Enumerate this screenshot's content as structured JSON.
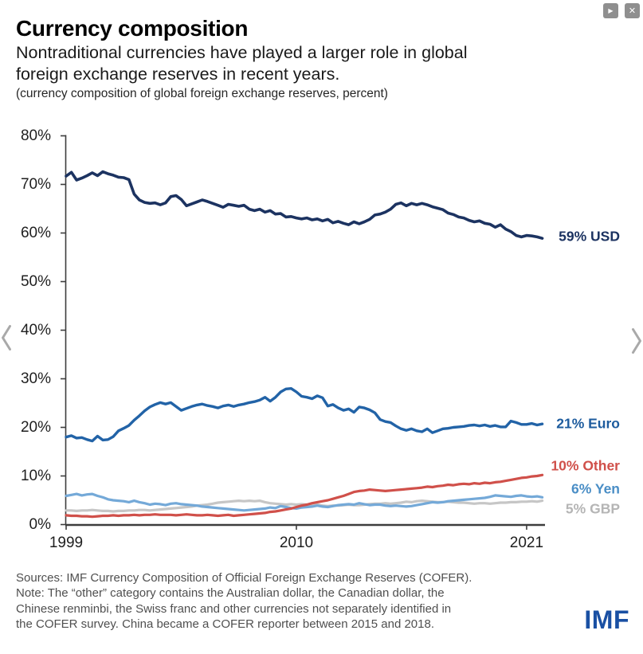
{
  "window": {
    "play_button": "▶",
    "close_button": "✕"
  },
  "header": {
    "title": "Currency composition",
    "subtitle_line1": "Nontraditional currencies have played a larger role in global",
    "subtitle_line2": "foreign exchange reserves in recent years.",
    "caption": "(currency composition of global foreign exchange reserves, percent)"
  },
  "footer": {
    "source_line1": "Sources: IMF Currency Composition of Official Foreign Exchange Reserves (COFER).",
    "source_line2": "Note: The “other” category contains the Australian dollar, the Canadian dollar, the",
    "source_line3": "Chinese renminbi, the Swiss franc and other currencies not separately identified in",
    "source_line4": "the COFER survey. China became a COFER reporter between 2015 and 2018.",
    "logo": "IMF"
  },
  "chart_data": {
    "type": "line",
    "title": "Currency composition",
    "subtitle": "currency composition of global foreign exchange reserves, percent",
    "x_unit": "quarter",
    "xlim": [
      1999,
      2022
    ],
    "ylim": [
      0,
      80
    ],
    "grid": false,
    "legend_position": "right-end-labels",
    "axis_color": "#3d3d3d",
    "x_ticks": [
      {
        "label": "1999",
        "year": 1999
      },
      {
        "label": "2010",
        "year": 2010
      },
      {
        "label": "2021",
        "year": 2021
      }
    ],
    "y_ticks": [
      {
        "label": "0%",
        "value": 0
      },
      {
        "label": "10%",
        "value": 10
      },
      {
        "label": "20%",
        "value": 20
      },
      {
        "label": "30%",
        "value": 30
      },
      {
        "label": "40%",
        "value": 40
      },
      {
        "label": "50%",
        "value": 50
      },
      {
        "label": "60%",
        "value": 60
      },
      {
        "label": "70%",
        "value": 70
      },
      {
        "label": "80%",
        "value": 80
      }
    ],
    "series": [
      {
        "name": "USD",
        "end_label": "59% USD",
        "color": "#1c3361",
        "label_color": "#1c3361",
        "stroke_width": 3.6,
        "label_offset": -2,
        "values": [
          71.7,
          72.5,
          70.9,
          71.3,
          71.8,
          72.4,
          71.8,
          72.6,
          72.2,
          71.9,
          71.5,
          71.4,
          71.0,
          68.0,
          66.8,
          66.3,
          66.1,
          66.2,
          65.8,
          66.2,
          67.5,
          67.7,
          66.9,
          65.6,
          66.0,
          66.4,
          66.8,
          66.5,
          66.1,
          65.7,
          65.3,
          65.9,
          65.7,
          65.5,
          65.7,
          64.9,
          64.6,
          64.9,
          64.3,
          64.6,
          63.9,
          64.0,
          63.3,
          63.4,
          63.1,
          62.9,
          63.1,
          62.7,
          62.9,
          62.5,
          62.8,
          62.1,
          62.4,
          62.0,
          61.7,
          62.3,
          61.9,
          62.3,
          62.8,
          63.7,
          63.9,
          64.3,
          64.9,
          65.9,
          66.2,
          65.6,
          66.1,
          65.8,
          66.1,
          65.8,
          65.4,
          65.1,
          64.8,
          64.1,
          63.8,
          63.3,
          63.1,
          62.6,
          62.3,
          62.5,
          62.0,
          61.8,
          61.2,
          61.7,
          60.8,
          60.3,
          59.5,
          59.2,
          59.5,
          59.4,
          59.2,
          58.9
        ]
      },
      {
        "name": "Euro",
        "end_label": "21% Euro",
        "color": "#2263a7",
        "label_color": "#1e5c9e",
        "stroke_width": 3.4,
        "label_offset": 0,
        "values": [
          18.0,
          18.3,
          17.8,
          17.9,
          17.5,
          17.2,
          18.2,
          17.4,
          17.5,
          18.1,
          19.3,
          19.8,
          20.4,
          21.5,
          22.4,
          23.4,
          24.2,
          24.7,
          25.1,
          24.8,
          25.1,
          24.3,
          23.5,
          23.9,
          24.3,
          24.6,
          24.8,
          24.5,
          24.3,
          24.0,
          24.4,
          24.6,
          24.3,
          24.6,
          24.8,
          25.1,
          25.3,
          25.6,
          26.2,
          25.4,
          26.2,
          27.3,
          27.9,
          28.0,
          27.3,
          26.4,
          26.2,
          25.9,
          26.5,
          26.1,
          24.4,
          24.7,
          24.0,
          23.5,
          23.8,
          23.1,
          24.2,
          24.0,
          23.6,
          23.0,
          21.6,
          21.2,
          21.0,
          20.3,
          19.7,
          19.4,
          19.7,
          19.3,
          19.1,
          19.7,
          18.9,
          19.3,
          19.7,
          19.8,
          20.0,
          20.1,
          20.2,
          20.4,
          20.5,
          20.3,
          20.5,
          20.2,
          20.4,
          20.1,
          20.1,
          21.3,
          21.0,
          20.6,
          20.6,
          20.8,
          20.5,
          20.7
        ]
      },
      {
        "name": "Other",
        "end_label": "10% Other",
        "color": "#d0504a",
        "label_color": "#d0504a",
        "stroke_width": 3.2,
        "label_offset": -11,
        "values": [
          1.9,
          1.8,
          1.8,
          1.7,
          1.7,
          1.6,
          1.7,
          1.8,
          1.8,
          1.9,
          1.8,
          1.9,
          1.9,
          2.0,
          1.9,
          2.0,
          2.0,
          2.1,
          2.0,
          2.0,
          2.0,
          1.9,
          2.0,
          2.1,
          2.0,
          1.9,
          1.9,
          2.0,
          1.9,
          1.8,
          1.9,
          2.0,
          1.8,
          1.9,
          2.0,
          2.1,
          2.2,
          2.3,
          2.4,
          2.6,
          2.7,
          2.9,
          3.1,
          3.3,
          3.6,
          3.9,
          4.1,
          4.4,
          4.6,
          4.8,
          5.0,
          5.3,
          5.6,
          5.9,
          6.3,
          6.7,
          6.9,
          7.0,
          7.2,
          7.1,
          7.0,
          6.9,
          7.0,
          7.1,
          7.2,
          7.3,
          7.4,
          7.5,
          7.6,
          7.8,
          7.7,
          7.9,
          8.0,
          8.2,
          8.1,
          8.3,
          8.4,
          8.3,
          8.5,
          8.4,
          8.6,
          8.5,
          8.7,
          8.8,
          9.0,
          9.2,
          9.4,
          9.6,
          9.7,
          9.9,
          10.0,
          10.2
        ]
      },
      {
        "name": "Yen",
        "end_label": "6% Yen",
        "color": "#74a9d8",
        "label_color": "#4a8ec6",
        "stroke_width": 3.2,
        "label_offset": -10,
        "values": [
          5.9,
          6.1,
          6.3,
          6.0,
          6.2,
          6.3,
          5.9,
          5.6,
          5.2,
          5.0,
          4.9,
          4.8,
          4.6,
          4.9,
          4.6,
          4.4,
          4.1,
          4.3,
          4.2,
          4.0,
          4.3,
          4.4,
          4.2,
          4.1,
          4.0,
          3.9,
          3.7,
          3.6,
          3.5,
          3.4,
          3.3,
          3.2,
          3.1,
          3.0,
          2.9,
          3.0,
          3.1,
          3.2,
          3.3,
          3.5,
          3.4,
          3.8,
          3.6,
          3.4,
          3.3,
          3.5,
          3.6,
          3.7,
          3.9,
          3.7,
          3.6,
          3.8,
          4.0,
          4.1,
          4.2,
          4.1,
          4.4,
          4.2,
          4.0,
          4.1,
          4.1,
          3.9,
          3.8,
          3.9,
          3.8,
          3.7,
          3.8,
          4.0,
          4.2,
          4.4,
          4.6,
          4.5,
          4.6,
          4.8,
          4.9,
          5.0,
          5.1,
          5.2,
          5.3,
          5.4,
          5.5,
          5.7,
          6.0,
          5.9,
          5.8,
          5.7,
          5.9,
          6.0,
          5.8,
          5.7,
          5.8,
          5.6
        ]
      },
      {
        "name": "GBP",
        "end_label": "5% GBP",
        "color": "#c6c6c6",
        "label_color": "#b5b5b5",
        "stroke_width": 3.2,
        "label_offset": 10,
        "values": [
          2.9,
          2.9,
          2.8,
          2.9,
          2.9,
          3.0,
          2.9,
          2.8,
          2.8,
          2.7,
          2.8,
          2.8,
          2.9,
          2.9,
          3.0,
          3.0,
          2.9,
          3.0,
          3.1,
          3.2,
          3.3,
          3.4,
          3.5,
          3.6,
          3.7,
          3.9,
          4.0,
          4.1,
          4.3,
          4.5,
          4.6,
          4.7,
          4.8,
          4.9,
          4.8,
          4.9,
          4.8,
          4.9,
          4.6,
          4.4,
          4.3,
          4.2,
          4.1,
          4.2,
          4.1,
          4.2,
          4.1,
          4.0,
          4.1,
          3.9,
          3.8,
          3.9,
          3.9,
          4.0,
          4.1,
          4.0,
          4.0,
          4.1,
          4.2,
          4.3,
          4.3,
          4.4,
          4.3,
          4.4,
          4.5,
          4.7,
          4.6,
          4.8,
          4.9,
          4.8,
          4.7,
          4.6,
          4.6,
          4.7,
          4.6,
          4.5,
          4.5,
          4.4,
          4.3,
          4.4,
          4.4,
          4.3,
          4.4,
          4.5,
          4.5,
          4.6,
          4.6,
          4.7,
          4.7,
          4.8,
          4.7,
          4.9
        ]
      }
    ]
  }
}
